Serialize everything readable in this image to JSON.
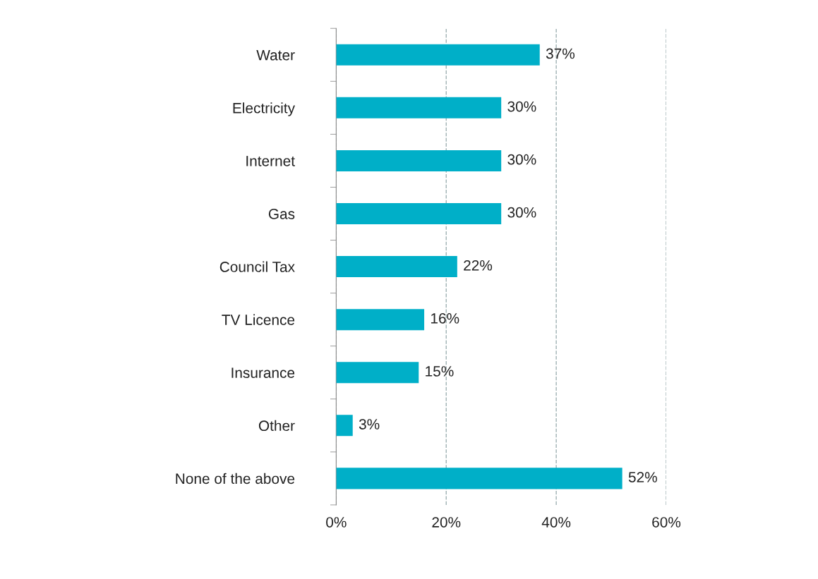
{
  "chart_data": {
    "type": "bar",
    "orientation": "horizontal",
    "categories": [
      "Water",
      "Electricity",
      "Internet",
      "Gas",
      "Council Tax",
      "TV Licence",
      "Insurance",
      "Other",
      "None of the above"
    ],
    "values": [
      37,
      30,
      30,
      30,
      22,
      16,
      15,
      3,
      52
    ],
    "value_labels": [
      "37%",
      "30%",
      "30%",
      "30%",
      "22%",
      "16%",
      "15%",
      "3%",
      "52%"
    ],
    "color": "#00afc8",
    "xlim": [
      0,
      60
    ],
    "xticks": [
      {
        "value": 0,
        "label": "0%"
      },
      {
        "value": 20,
        "label": "20%"
      },
      {
        "value": 40,
        "label": "40%"
      },
      {
        "value": 60,
        "label": "60%"
      }
    ],
    "grid": "x",
    "line_style": "dashed"
  }
}
